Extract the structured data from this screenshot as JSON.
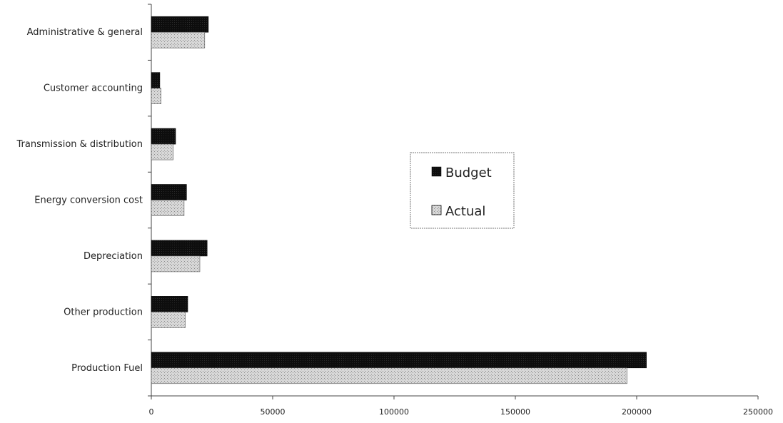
{
  "chart_data": {
    "type": "bar",
    "orientation": "horizontal",
    "categories": [
      "Production Fuel",
      "Other production",
      "Depreciation",
      "Energy conversion cost",
      "Transmission & distribution",
      "Customer accounting",
      "Administrative & general"
    ],
    "series": [
      {
        "name": "Budget",
        "values": [
          204000,
          15000,
          23000,
          14500,
          10000,
          3500,
          23500
        ],
        "color": "#111111"
      },
      {
        "name": "Actual",
        "values": [
          196000,
          14000,
          20000,
          13500,
          9000,
          4000,
          22000
        ],
        "color": "#c8c8c8"
      }
    ],
    "xlim": [
      0,
      250000
    ],
    "x_ticks": [
      "0",
      "50000",
      "100000",
      "150000",
      "200000",
      "250000"
    ],
    "title": "",
    "xlabel": "",
    "ylabel": "",
    "legend_position": "center-right",
    "grid": false
  }
}
